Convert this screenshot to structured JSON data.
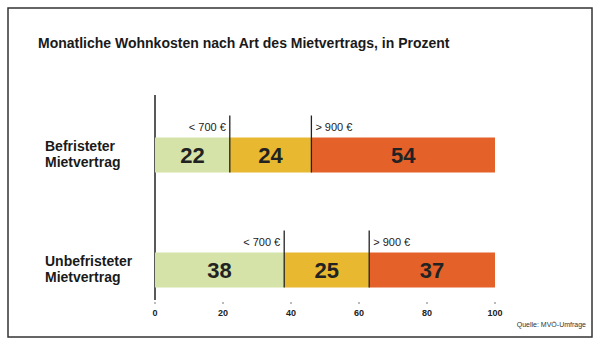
{
  "chart_data": {
    "type": "bar",
    "orientation": "horizontal",
    "stacked": true,
    "data_labels": true,
    "title": "Monatliche Wohnkosten nach Art des Mietvertrags, in Prozent",
    "source": "Quelle: MVÖ-Umfrage",
    "categories": [
      "Befristeter Mietvertrag",
      "Unbefristeter Mietvertrag"
    ],
    "series": [
      {
        "name": "< 700 €",
        "color": "#d5e3a8",
        "values": [
          22,
          38
        ]
      },
      {
        "color": "#e8b830",
        "values": [
          24,
          25
        ]
      },
      {
        "name": "> 900 €",
        "color": "#e4622a",
        "values": [
          54,
          37
        ]
      }
    ],
    "xlim": [
      0,
      100
    ],
    "xticks": [
      0,
      20,
      40,
      60,
      80,
      100
    ]
  }
}
